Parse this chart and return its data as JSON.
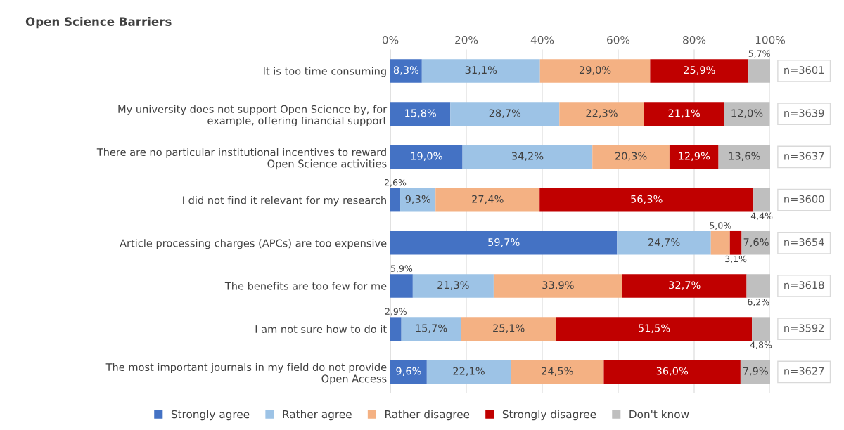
{
  "chart_data": {
    "type": "bar",
    "orientation": "horizontal",
    "stacked": true,
    "title": "Open Science Barriers",
    "categories": [
      "It is too time consuming",
      "My university does not support Open Science by, for example, offering financial support",
      "There are no particular institutional incentives to reward Open Science activities",
      "I did not find it relevant for my research",
      "Article processing charges (APCs) are too expensive",
      "The benefits are too few for me",
      "I am not sure how to do it",
      "The most important journals in my field do not provide Open Access"
    ],
    "series": [
      {
        "name": "Strongly agree",
        "color": "#4472c4",
        "values": [
          8.3,
          15.8,
          19.0,
          2.6,
          59.7,
          5.9,
          2.9,
          9.6
        ],
        "value_labels": [
          "8,3%",
          "15,8%",
          "19,0%",
          "2,6%",
          "59,7%",
          "5,9%",
          "2,9%",
          "9,6%"
        ]
      },
      {
        "name": "Rather agree",
        "color": "#9dc3e6",
        "values": [
          31.1,
          28.7,
          34.2,
          9.3,
          24.7,
          21.3,
          15.7,
          22.1
        ],
        "value_labels": [
          "31,1%",
          "28,7%",
          "34,2%",
          "9,3%",
          "24,7%",
          "21,3%",
          "15,7%",
          "22,1%"
        ]
      },
      {
        "name": "Rather disagree",
        "color": "#f4b183",
        "values": [
          29.0,
          22.3,
          20.3,
          27.4,
          5.0,
          33.9,
          25.1,
          24.5
        ],
        "value_labels": [
          "29,0%",
          "22,3%",
          "20,3%",
          "27,4%",
          "5,0%",
          "33,9%",
          "25,1%",
          "24,5%"
        ]
      },
      {
        "name": "Strongly disagree",
        "color": "#c00000",
        "values": [
          25.9,
          21.1,
          12.9,
          56.3,
          3.1,
          32.7,
          51.5,
          36.0
        ],
        "value_labels": [
          "25,9%",
          "21,1%",
          "12,9%",
          "56,3%",
          "3,1%",
          "32,7%",
          "51,5%",
          "36,0%"
        ]
      },
      {
        "name": "Don't know",
        "color": "#bfbfbf",
        "values": [
          5.7,
          12.0,
          13.6,
          4.4,
          7.6,
          6.2,
          4.8,
          7.9
        ],
        "value_labels": [
          "5,7%",
          "12,0%",
          "13,6%",
          "4,4%",
          "7,6%",
          "6,2%",
          "4,8%",
          "7,9%"
        ]
      }
    ],
    "xlim": [
      0,
      100
    ],
    "xticks": [
      {
        "value": 0,
        "label": "0%"
      },
      {
        "value": 20,
        "label": "20%"
      },
      {
        "value": 40,
        "label": "40%"
      },
      {
        "value": 60,
        "label": "60%"
      },
      {
        "value": 80,
        "label": "80%"
      },
      {
        "value": 100,
        "label": "100%"
      }
    ],
    "grid": "x",
    "legend": "bottom",
    "annotations": [
      "n=3601",
      "n=3639",
      "n=3637",
      "n=3600",
      "n=3654",
      "n=3618",
      "n=3592",
      "n=3627"
    ]
  }
}
